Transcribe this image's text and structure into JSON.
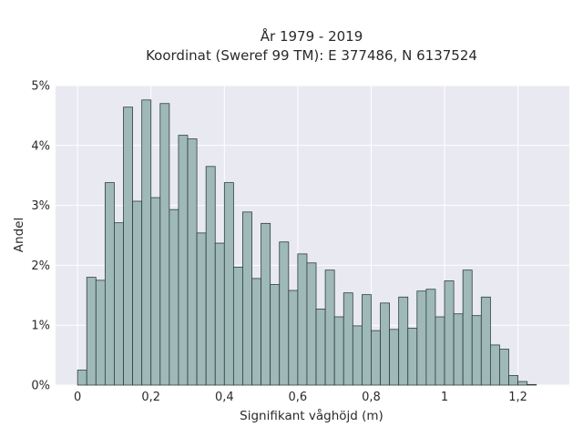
{
  "chart_data": {
    "type": "bar",
    "title_line1": "År 1979 - 2019",
    "title_line2": "Koordinat (Sweref 99 TM): E 377486, N 6137524",
    "xlabel": "Signifikant våghöjd (m)",
    "ylabel": "Andel",
    "xlim": [
      -0.06,
      1.34
    ],
    "ylim": [
      0,
      0.05
    ],
    "x_ticks": [
      {
        "value": 0,
        "label": "0"
      },
      {
        "value": 0.2,
        "label": "0,2"
      },
      {
        "value": 0.4,
        "label": "0,4"
      },
      {
        "value": 0.6,
        "label": "0,6"
      },
      {
        "value": 0.8,
        "label": "0,8"
      },
      {
        "value": 1.0,
        "label": "1"
      },
      {
        "value": 1.2,
        "label": "1,2"
      }
    ],
    "y_ticks": [
      {
        "value": 0,
        "label": "0%"
      },
      {
        "value": 0.01,
        "label": "1%"
      },
      {
        "value": 0.02,
        "label": "2%"
      },
      {
        "value": 0.03,
        "label": "3%"
      },
      {
        "value": 0.04,
        "label": "4%"
      },
      {
        "value": 0.05,
        "label": "5%"
      }
    ],
    "grid": true,
    "bin_start": 0,
    "bin_width": 0.025,
    "values": [
      0.0025,
      0.018,
      0.0175,
      0.0338,
      0.0271,
      0.0464,
      0.0307,
      0.0476,
      0.0313,
      0.047,
      0.0293,
      0.0417,
      0.0411,
      0.0254,
      0.0365,
      0.0237,
      0.0338,
      0.0197,
      0.0289,
      0.0178,
      0.027,
      0.0168,
      0.0239,
      0.0158,
      0.0219,
      0.0204,
      0.0127,
      0.0192,
      0.0114,
      0.0154,
      0.0099,
      0.0151,
      0.0091,
      0.0137,
      0.0093,
      0.0147,
      0.0095,
      0.0157,
      0.016,
      0.0114,
      0.0174,
      0.0119,
      0.0192,
      0.0116,
      0.0147,
      0.0067,
      0.006,
      0.0016,
      0.0006,
      0.0001
    ]
  },
  "colors": {
    "bar_fill": "#9fb8b8",
    "bar_edge": "#2f3f3f",
    "plot_background": "#e9e9f1",
    "grid": "#ffffff"
  }
}
